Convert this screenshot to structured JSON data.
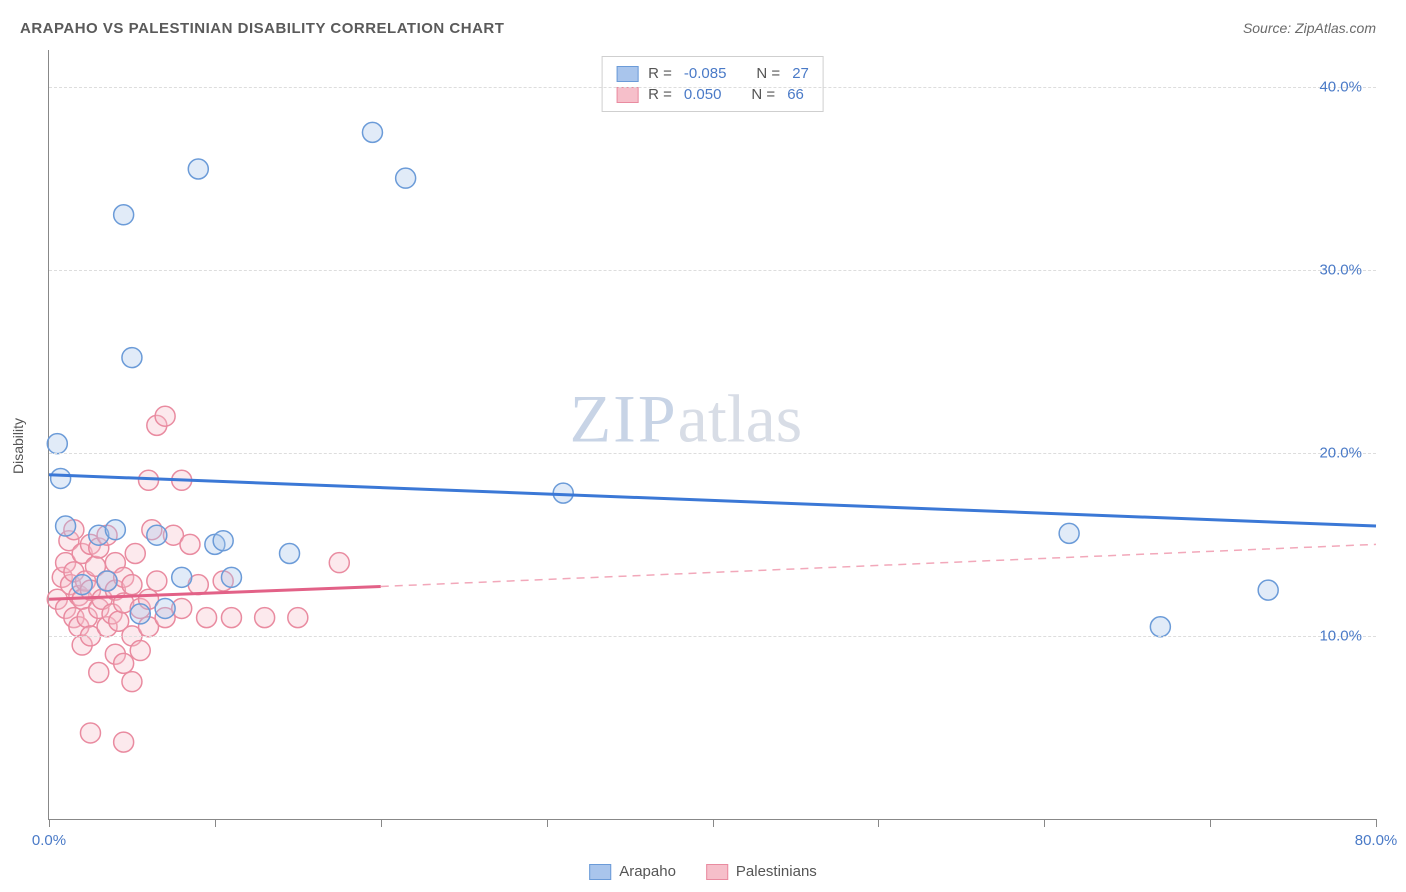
{
  "title": "ARAPAHO VS PALESTINIAN DISABILITY CORRELATION CHART",
  "source": "Source: ZipAtlas.com",
  "y_axis_label": "Disability",
  "watermark_a": "ZIP",
  "watermark_b": "atlas",
  "chart": {
    "type": "scatter",
    "xlim": [
      0,
      80
    ],
    "ylim": [
      0,
      42
    ],
    "x_ticks": [
      0,
      10,
      20,
      30,
      40,
      50,
      60,
      70,
      80
    ],
    "x_tick_labels": {
      "0": "0.0%",
      "80": "80.0%"
    },
    "y_gridlines": [
      10,
      20,
      30,
      40
    ],
    "y_tick_labels": {
      "10": "10.0%",
      "20": "20.0%",
      "30": "30.0%",
      "40": "40.0%"
    },
    "background_color": "#ffffff",
    "grid_color": "#dddddd",
    "axis_color": "#888888",
    "tick_label_color": "#4a7ac7",
    "marker_radius": 10,
    "marker_stroke_width": 1.5,
    "marker_fill_opacity": 0.35,
    "series": {
      "arapaho": {
        "label": "Arapaho",
        "fill": "#a9c5ec",
        "stroke": "#6b9bd8",
        "trend": {
          "x1": 0,
          "y1": 18.8,
          "x2": 80,
          "y2": 16.0,
          "color": "#3b78d6",
          "width": 3,
          "dash": ""
        },
        "points": [
          [
            0.5,
            20.5
          ],
          [
            0.7,
            18.6
          ],
          [
            1.0,
            16.0
          ],
          [
            2.0,
            12.8
          ],
          [
            3.0,
            15.5
          ],
          [
            3.5,
            13.0
          ],
          [
            4.0,
            15.8
          ],
          [
            4.5,
            33.0
          ],
          [
            5.0,
            25.2
          ],
          [
            5.5,
            11.2
          ],
          [
            6.5,
            15.5
          ],
          [
            7.0,
            11.5
          ],
          [
            8.0,
            13.2
          ],
          [
            9.0,
            35.5
          ],
          [
            10.0,
            15.0
          ],
          [
            10.5,
            15.2
          ],
          [
            11.0,
            13.2
          ],
          [
            14.5,
            14.5
          ],
          [
            19.5,
            37.5
          ],
          [
            21.5,
            35.0
          ],
          [
            31.0,
            17.8
          ],
          [
            61.5,
            15.6
          ],
          [
            67.0,
            10.5
          ],
          [
            73.5,
            12.5
          ]
        ]
      },
      "palestinians": {
        "label": "Palestinians",
        "fill": "#f6bfca",
        "stroke": "#e98ba0",
        "trend_solid": {
          "x1": 0,
          "y1": 12.0,
          "x2": 20,
          "y2": 12.7,
          "color": "#e26187",
          "width": 3
        },
        "trend_dash": {
          "x1": 20,
          "y1": 12.7,
          "x2": 80,
          "y2": 15.0,
          "color": "#f2a8ba",
          "width": 1.5,
          "dash": "8 6"
        },
        "points": [
          [
            0.5,
            12.0
          ],
          [
            0.8,
            13.2
          ],
          [
            1.0,
            11.5
          ],
          [
            1.0,
            14.0
          ],
          [
            1.2,
            15.2
          ],
          [
            1.3,
            12.8
          ],
          [
            1.5,
            11.0
          ],
          [
            1.5,
            13.5
          ],
          [
            1.5,
            15.8
          ],
          [
            1.8,
            10.5
          ],
          [
            1.8,
            12.2
          ],
          [
            2.0,
            14.5
          ],
          [
            2.0,
            12.0
          ],
          [
            2.0,
            9.5
          ],
          [
            2.2,
            13.0
          ],
          [
            2.3,
            11.0
          ],
          [
            2.5,
            15.0
          ],
          [
            2.5,
            12.5
          ],
          [
            2.5,
            10.0
          ],
          [
            2.8,
            13.8
          ],
          [
            3.0,
            11.5
          ],
          [
            3.0,
            8.0
          ],
          [
            3.0,
            14.8
          ],
          [
            3.2,
            12.0
          ],
          [
            3.5,
            10.5
          ],
          [
            3.5,
            13.0
          ],
          [
            3.5,
            15.5
          ],
          [
            3.8,
            11.2
          ],
          [
            4.0,
            9.0
          ],
          [
            4.0,
            12.5
          ],
          [
            4.0,
            14.0
          ],
          [
            4.2,
            10.8
          ],
          [
            4.5,
            8.5
          ],
          [
            4.5,
            13.2
          ],
          [
            4.5,
            11.8
          ],
          [
            5.0,
            10.0
          ],
          [
            5.0,
            12.8
          ],
          [
            5.0,
            7.5
          ],
          [
            5.2,
            14.5
          ],
          [
            5.5,
            11.5
          ],
          [
            5.5,
            9.2
          ],
          [
            6.0,
            12.0
          ],
          [
            6.0,
            10.5
          ],
          [
            6.0,
            18.5
          ],
          [
            6.2,
            15.8
          ],
          [
            6.5,
            21.5
          ],
          [
            6.5,
            13.0
          ],
          [
            7.0,
            22.0
          ],
          [
            7.0,
            11.0
          ],
          [
            7.5,
            15.5
          ],
          [
            8.0,
            18.5
          ],
          [
            8.0,
            11.5
          ],
          [
            8.5,
            15.0
          ],
          [
            9.0,
            12.8
          ],
          [
            9.5,
            11.0
          ],
          [
            10.5,
            13.0
          ],
          [
            11.0,
            11.0
          ],
          [
            13.0,
            11.0
          ],
          [
            15.0,
            11.0
          ],
          [
            17.5,
            14.0
          ],
          [
            2.5,
            4.7
          ],
          [
            4.5,
            4.2
          ]
        ]
      }
    },
    "stats_legend": [
      {
        "swatch_fill": "#a9c5ec",
        "swatch_stroke": "#6b9bd8",
        "r": "-0.085",
        "n": "27"
      },
      {
        "swatch_fill": "#f6bfca",
        "swatch_stroke": "#e98ba0",
        "r": "0.050",
        "n": "66"
      }
    ],
    "bottom_legend": [
      {
        "swatch_fill": "#a9c5ec",
        "swatch_stroke": "#6b9bd8",
        "label": "Arapaho"
      },
      {
        "swatch_fill": "#f6bfca",
        "swatch_stroke": "#e98ba0",
        "label": "Palestinians"
      }
    ]
  },
  "labels": {
    "r_eq": "R =",
    "n_eq": "N ="
  }
}
